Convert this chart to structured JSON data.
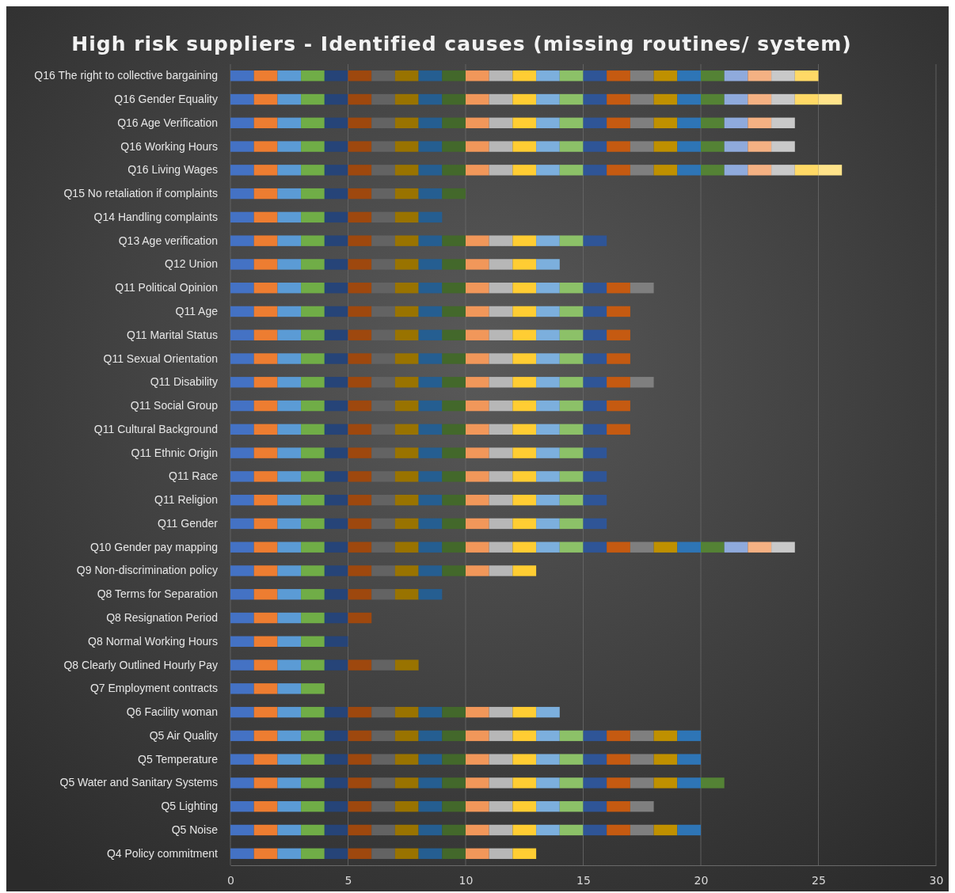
{
  "chart_data": {
    "type": "bar",
    "title": "High risk suppliers - Identified causes (missing routines/ system)",
    "orientation": "horizontal",
    "stacked": true,
    "grid": "x",
    "xlim": [
      0,
      30
    ],
    "xticks": [
      0,
      5,
      10,
      15,
      20,
      25,
      30
    ],
    "categories": [
      "Q16 The right to collective bargaining",
      "Q16 Gender Equality",
      "Q16 Age Verification",
      "Q16 Working Hours",
      "Q16 Living Wages",
      "Q15 No retaliation if complaints",
      "Q14 Handling complaints",
      "Q13 Age verification",
      "Q12 Union",
      "Q11 Political Opinion",
      "Q11 Age",
      "Q11 Marital Status",
      "Q11 Sexual Orientation",
      "Q11 Disability",
      "Q11 Social Group",
      "Q11 Cultural Background",
      "Q11 Ethnic Origin",
      "Q11 Race",
      "Q11 Religion",
      "Q11 Gender",
      "Q10 Gender pay mapping",
      "Q9 Non-discrimination policy",
      "Q8 Terms for Separation",
      "Q8 Resignation Period",
      "Q8 Normal Working Hours",
      "Q8 Clearly Outlined Hourly Pay",
      "Q7 Employment contracts",
      "Q6 Facility woman",
      "Q5 Air Quality",
      "Q5 Temperature",
      "Q5 Water and Sanitary Systems",
      "Q5 Lighting",
      "Q5 Noise",
      "Q4 Policy commitment"
    ],
    "series": [
      {
        "color": "#4472c4",
        "values": [
          1,
          1,
          1,
          1,
          1,
          1,
          1,
          1,
          1,
          1,
          1,
          1,
          1,
          1,
          1,
          1,
          1,
          1,
          1,
          1,
          1,
          1,
          1,
          1,
          1,
          1,
          1,
          1,
          1,
          1,
          1,
          1,
          1,
          1
        ]
      },
      {
        "color": "#ed7d31",
        "values": [
          1,
          1,
          1,
          1,
          1,
          1,
          1,
          1,
          1,
          1,
          1,
          1,
          1,
          1,
          1,
          1,
          1,
          1,
          1,
          1,
          1,
          1,
          1,
          1,
          1,
          1,
          1,
          1,
          1,
          1,
          1,
          1,
          1,
          1
        ]
      },
      {
        "color": "#5b9bd5",
        "values": [
          1,
          1,
          1,
          1,
          1,
          1,
          1,
          1,
          1,
          1,
          1,
          1,
          1,
          1,
          1,
          1,
          1,
          1,
          1,
          1,
          1,
          1,
          1,
          1,
          1,
          1,
          1,
          1,
          1,
          1,
          1,
          1,
          1,
          1
        ]
      },
      {
        "color": "#70ad47",
        "values": [
          1,
          1,
          1,
          1,
          1,
          1,
          1,
          1,
          1,
          1,
          1,
          1,
          1,
          1,
          1,
          1,
          1,
          1,
          1,
          1,
          1,
          1,
          1,
          1,
          1,
          1,
          1,
          1,
          1,
          1,
          1,
          1,
          1,
          1
        ]
      },
      {
        "color": "#264478",
        "values": [
          1,
          1,
          1,
          1,
          1,
          1,
          1,
          1,
          1,
          1,
          1,
          1,
          1,
          1,
          1,
          1,
          1,
          1,
          1,
          1,
          1,
          1,
          1,
          1,
          1,
          1,
          null,
          1,
          1,
          1,
          1,
          1,
          1,
          1
        ]
      },
      {
        "color": "#9e480e",
        "values": [
          1,
          1,
          1,
          1,
          1,
          1,
          1,
          1,
          1,
          1,
          1,
          1,
          1,
          1,
          1,
          1,
          1,
          1,
          1,
          1,
          1,
          1,
          1,
          1,
          null,
          1,
          null,
          1,
          1,
          1,
          1,
          1,
          1,
          1
        ]
      },
      {
        "color": "#636363",
        "values": [
          1,
          1,
          1,
          1,
          1,
          1,
          1,
          1,
          1,
          1,
          1,
          1,
          1,
          1,
          1,
          1,
          1,
          1,
          1,
          1,
          1,
          1,
          1,
          null,
          null,
          1,
          null,
          1,
          1,
          1,
          1,
          1,
          1,
          1
        ]
      },
      {
        "color": "#997300",
        "values": [
          1,
          1,
          1,
          1,
          1,
          1,
          1,
          1,
          1,
          1,
          1,
          1,
          1,
          1,
          1,
          1,
          1,
          1,
          1,
          1,
          1,
          1,
          1,
          null,
          null,
          1,
          null,
          1,
          1,
          1,
          1,
          1,
          1,
          1
        ]
      },
      {
        "color": "#255e91",
        "values": [
          1,
          1,
          1,
          1,
          1,
          1,
          1,
          1,
          1,
          1,
          1,
          1,
          1,
          1,
          1,
          1,
          1,
          1,
          1,
          1,
          1,
          1,
          1,
          null,
          null,
          null,
          null,
          1,
          1,
          1,
          1,
          1,
          1,
          1
        ]
      },
      {
        "color": "#43682b",
        "values": [
          1,
          1,
          1,
          1,
          1,
          1,
          null,
          1,
          1,
          1,
          1,
          1,
          1,
          1,
          1,
          1,
          1,
          1,
          1,
          1,
          1,
          1,
          null,
          null,
          null,
          null,
          null,
          1,
          1,
          1,
          1,
          1,
          1,
          1
        ]
      },
      {
        "color": "#f1975a",
        "values": [
          1,
          1,
          1,
          1,
          1,
          null,
          null,
          1,
          1,
          1,
          1,
          1,
          1,
          1,
          1,
          1,
          1,
          1,
          1,
          1,
          1,
          1,
          null,
          null,
          null,
          null,
          null,
          1,
          1,
          1,
          1,
          1,
          1,
          1
        ]
      },
      {
        "color": "#b7b7b7",
        "values": [
          1,
          1,
          1,
          1,
          1,
          null,
          null,
          1,
          1,
          1,
          1,
          1,
          1,
          1,
          1,
          1,
          1,
          1,
          1,
          1,
          1,
          1,
          null,
          null,
          null,
          null,
          null,
          1,
          1,
          1,
          1,
          1,
          1,
          1
        ]
      },
      {
        "color": "#ffcd33",
        "values": [
          1,
          1,
          1,
          1,
          1,
          null,
          null,
          1,
          1,
          1,
          1,
          1,
          1,
          1,
          1,
          1,
          1,
          1,
          1,
          1,
          1,
          1,
          null,
          null,
          null,
          null,
          null,
          1,
          1,
          1,
          1,
          1,
          1,
          1
        ]
      },
      {
        "color": "#7cafdd",
        "values": [
          1,
          1,
          1,
          1,
          1,
          null,
          null,
          1,
          1,
          1,
          1,
          1,
          1,
          1,
          1,
          1,
          1,
          1,
          1,
          1,
          1,
          null,
          null,
          null,
          null,
          null,
          null,
          1,
          1,
          1,
          1,
          1,
          1,
          null
        ]
      },
      {
        "color": "#8cc168",
        "values": [
          1,
          1,
          1,
          1,
          1,
          null,
          null,
          1,
          null,
          1,
          1,
          1,
          1,
          1,
          1,
          1,
          1,
          1,
          1,
          1,
          1,
          null,
          null,
          null,
          null,
          null,
          null,
          null,
          1,
          1,
          1,
          1,
          1,
          null
        ]
      },
      {
        "color": "#2f5597",
        "values": [
          1,
          1,
          1,
          1,
          1,
          null,
          null,
          1,
          null,
          1,
          1,
          1,
          1,
          1,
          1,
          1,
          1,
          1,
          1,
          1,
          1,
          null,
          null,
          null,
          null,
          null,
          null,
          null,
          1,
          1,
          1,
          1,
          1,
          null
        ]
      },
      {
        "color": "#c55a11",
        "values": [
          1,
          1,
          1,
          1,
          1,
          null,
          null,
          null,
          null,
          1,
          1,
          1,
          1,
          1,
          1,
          1,
          null,
          null,
          null,
          null,
          1,
          null,
          null,
          null,
          null,
          null,
          null,
          null,
          1,
          1,
          1,
          1,
          1,
          null
        ]
      },
      {
        "color": "#7f7f7f",
        "values": [
          1,
          1,
          1,
          1,
          1,
          null,
          null,
          null,
          null,
          1,
          null,
          null,
          null,
          1,
          null,
          null,
          null,
          null,
          null,
          null,
          1,
          null,
          null,
          null,
          null,
          null,
          null,
          null,
          1,
          1,
          1,
          1,
          1,
          null
        ]
      },
      {
        "color": "#bf9000",
        "values": [
          1,
          1,
          1,
          1,
          1,
          null,
          null,
          null,
          null,
          null,
          null,
          null,
          null,
          null,
          null,
          null,
          null,
          null,
          null,
          null,
          1,
          null,
          null,
          null,
          null,
          null,
          null,
          null,
          1,
          1,
          1,
          null,
          1,
          null
        ]
      },
      {
        "color": "#2e75b6",
        "values": [
          1,
          1,
          1,
          1,
          1,
          null,
          null,
          null,
          null,
          null,
          null,
          null,
          null,
          null,
          null,
          null,
          null,
          null,
          null,
          null,
          1,
          null,
          null,
          null,
          null,
          null,
          null,
          null,
          1,
          1,
          1,
          null,
          1,
          null
        ]
      },
      {
        "color": "#548235",
        "values": [
          1,
          1,
          1,
          1,
          1,
          null,
          null,
          null,
          null,
          null,
          null,
          null,
          null,
          null,
          null,
          null,
          null,
          null,
          null,
          null,
          1,
          null,
          null,
          null,
          null,
          null,
          null,
          null,
          null,
          null,
          1,
          null,
          null,
          null
        ]
      },
      {
        "color": "#8faadc",
        "values": [
          1,
          1,
          1,
          1,
          1,
          null,
          null,
          null,
          null,
          null,
          null,
          null,
          null,
          null,
          null,
          null,
          null,
          null,
          null,
          null,
          1,
          null,
          null,
          null,
          null,
          null,
          null,
          null,
          null,
          null,
          null,
          null,
          null,
          null
        ]
      },
      {
        "color": "#f4b183",
        "values": [
          1,
          1,
          1,
          1,
          1,
          null,
          null,
          null,
          null,
          null,
          null,
          null,
          null,
          null,
          null,
          null,
          null,
          null,
          null,
          null,
          1,
          null,
          null,
          null,
          null,
          null,
          null,
          null,
          null,
          null,
          null,
          null,
          null,
          null
        ]
      },
      {
        "color": "#c9c9c9",
        "values": [
          1,
          1,
          1,
          1,
          1,
          null,
          null,
          null,
          null,
          null,
          null,
          null,
          null,
          null,
          null,
          null,
          null,
          null,
          null,
          null,
          1,
          null,
          null,
          null,
          null,
          null,
          null,
          null,
          null,
          null,
          null,
          null,
          null,
          null
        ]
      },
      {
        "color": "#ffd966",
        "values": [
          1,
          1,
          null,
          null,
          1,
          null,
          null,
          null,
          null,
          null,
          null,
          null,
          null,
          null,
          null,
          null,
          null,
          null,
          null,
          null,
          null,
          null,
          null,
          null,
          null,
          null,
          null,
          null,
          null,
          null,
          null,
          null,
          null,
          null
        ]
      },
      {
        "color": "#ffe38a",
        "values": [
          null,
          1,
          null,
          null,
          1,
          null,
          null,
          null,
          null,
          null,
          null,
          null,
          null,
          null,
          null,
          null,
          null,
          null,
          null,
          null,
          null,
          null,
          null,
          null,
          null,
          null,
          null,
          null,
          null,
          null,
          null,
          null,
          null,
          null
        ]
      }
    ]
  }
}
